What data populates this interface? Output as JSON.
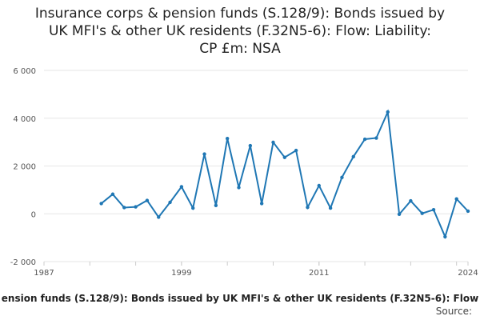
{
  "chart_data": {
    "type": "line",
    "title_lines": [
      "Insurance corps & pension funds (S.128/9): Bonds issued by",
      "UK MFI's & other UK residents (F.32N5-6): Flow: Liability:",
      "CP £m: NSA"
    ],
    "xlabel": "",
    "ylabel": "",
    "x_ticks": [
      "1987",
      "1999",
      "2011",
      "2024"
    ],
    "x_tick_values": [
      1987,
      1999,
      2011,
      2024
    ],
    "y_ticks": [
      "6 000",
      "4 000",
      "2 000",
      "0",
      "-2 000"
    ],
    "y_tick_values": [
      6000,
      4000,
      2000,
      0,
      -2000
    ],
    "xlim": [
      1987,
      2024
    ],
    "ylim": [
      -2000,
      6000
    ],
    "grid": true,
    "series": [
      {
        "name": "Insurance corps & pension funds (S.128/9): Bonds issued by UK MFI's & other UK residents (F.32N5-6): Flow: Liability: CP £m: NSA",
        "color": "#1f77b4",
        "x": [
          1992,
          1993,
          1994,
          1995,
          1996,
          1997,
          1998,
          1999,
          2000,
          2001,
          2002,
          2003,
          2004,
          2005,
          2006,
          2007,
          2008,
          2009,
          2010,
          2011,
          2012,
          2013,
          2014,
          2015,
          2016,
          2017,
          2018,
          2019,
          2020,
          2021,
          2022,
          2023,
          2024
        ],
        "values": [
          430,
          820,
          260,
          290,
          560,
          -140,
          480,
          1130,
          240,
          2500,
          350,
          3150,
          1100,
          2850,
          430,
          2990,
          2360,
          2650,
          270,
          1180,
          240,
          1520,
          2390,
          3120,
          3170,
          4260,
          -20,
          540,
          20,
          170,
          -960,
          620,
          110
        ]
      }
    ]
  },
  "legend_text": "ension funds (S.128/9): Bonds issued by UK MFI's & other UK residents (F.32N5-6): Flow",
  "source_label": "Source:"
}
